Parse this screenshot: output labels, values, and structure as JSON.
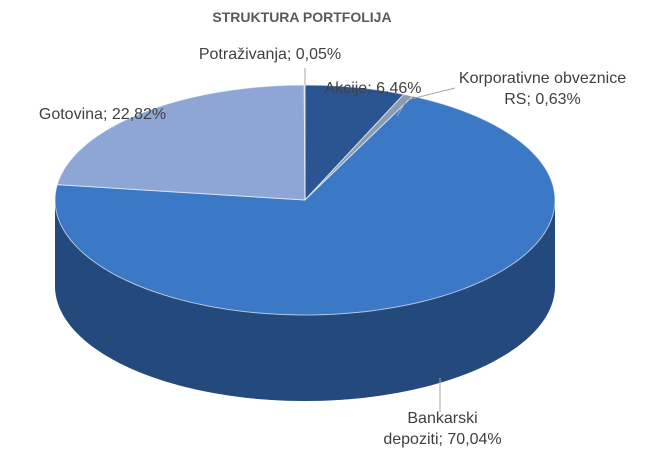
{
  "chart_data": {
    "type": "pie3d",
    "title": "STRUKTURA PORTFOLIJA",
    "categories": [
      "Akcije",
      "Korporativne obveznice RS",
      "Bankarski depoziti",
      "Gotovina",
      "Potraživanja"
    ],
    "values": [
      6.46,
      0.63,
      70.04,
      22.82,
      0.05
    ],
    "value_labels": [
      "6,46%",
      "0,63%",
      "70,04%",
      "22,82%",
      "0,05%"
    ],
    "label_separator": "; ",
    "colors": [
      "#2b5592",
      "#8c9bb4",
      "#3b78c6",
      "#8ea6d6",
      "#b0b8c8"
    ]
  }
}
